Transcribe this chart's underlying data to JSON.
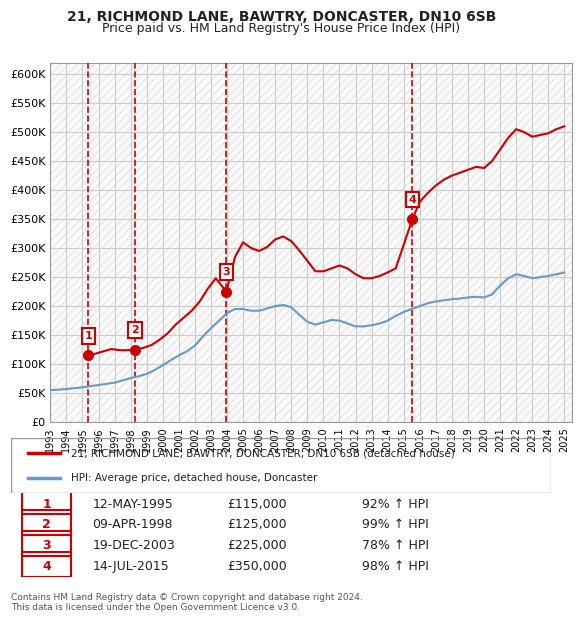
{
  "title1": "21, RICHMOND LANE, BAWTRY, DONCASTER, DN10 6SB",
  "title2": "Price paid vs. HM Land Registry's House Price Index (HPI)",
  "footer": "Contains HM Land Registry data © Crown copyright and database right 2024.\nThis data is licensed under the Open Government Licence v3.0.",
  "legend1": "21, RICHMOND LANE, BAWTRY, DONCASTER, DN10 6SB (detached house)",
  "legend2": "HPI: Average price, detached house, Doncaster",
  "sales": [
    {
      "label": "1",
      "date": "12-MAY-1995",
      "price": 115000,
      "x": 1995.36
    },
    {
      "label": "2",
      "date": "09-APR-1998",
      "price": 125000,
      "x": 1998.27
    },
    {
      "label": "3",
      "date": "19-DEC-2003",
      "price": 225000,
      "x": 2003.96
    },
    {
      "label": "4",
      "date": "14-JUL-2015",
      "price": 350000,
      "x": 2015.54
    }
  ],
  "sale_table": [
    [
      "1",
      "12-MAY-1995",
      "£115,000",
      "92% ↑ HPI"
    ],
    [
      "2",
      "09-APR-1998",
      "£125,000",
      "99% ↑ HPI"
    ],
    [
      "3",
      "19-DEC-2003",
      "£225,000",
      "78% ↑ HPI"
    ],
    [
      "4",
      "14-JUL-2015",
      "£350,000",
      "98% ↑ HPI"
    ]
  ],
  "red_color": "#cc0000",
  "blue_color": "#6699cc",
  "hpi_x": [
    1993,
    1993.5,
    1994,
    1994.5,
    1995,
    1995.5,
    1996,
    1996.5,
    1997,
    1997.5,
    1998,
    1998.5,
    1999,
    1999.5,
    2000,
    2000.5,
    2001,
    2001.5,
    2002,
    2002.5,
    2003,
    2003.5,
    2004,
    2004.5,
    2005,
    2005.5,
    2006,
    2006.5,
    2007,
    2007.5,
    2008,
    2008.5,
    2009,
    2009.5,
    2010,
    2010.5,
    2011,
    2011.5,
    2012,
    2012.5,
    2013,
    2013.5,
    2014,
    2014.5,
    2015,
    2015.5,
    2016,
    2016.5,
    2017,
    2017.5,
    2018,
    2018.5,
    2019,
    2019.5,
    2020,
    2020.5,
    2021,
    2021.5,
    2022,
    2022.5,
    2023,
    2023.5,
    2024,
    2024.5,
    2025
  ],
  "hpi_y": [
    55000,
    56000,
    57000,
    58500,
    60000,
    62000,
    64000,
    66000,
    68000,
    72000,
    76000,
    79000,
    83000,
    90000,
    98000,
    107000,
    115000,
    122000,
    132000,
    148000,
    162000,
    175000,
    188000,
    195000,
    195000,
    192000,
    192000,
    196000,
    200000,
    202000,
    198000,
    185000,
    173000,
    168000,
    172000,
    176000,
    175000,
    170000,
    165000,
    165000,
    167000,
    170000,
    175000,
    183000,
    190000,
    195000,
    200000,
    205000,
    208000,
    210000,
    212000,
    213000,
    215000,
    216000,
    215000,
    220000,
    235000,
    248000,
    255000,
    252000,
    248000,
    250000,
    252000,
    255000,
    258000
  ],
  "red_x": [
    1993,
    1993.5,
    1994,
    1994.5,
    1995.36,
    1995.8,
    1996.3,
    1996.8,
    1997.3,
    1997.8,
    1998.27,
    1998.8,
    1999.3,
    1999.8,
    2000.3,
    2000.8,
    2001.3,
    2001.8,
    2002.3,
    2002.8,
    2003.3,
    2003.96,
    2004.5,
    2005,
    2005.5,
    2006,
    2006.5,
    2007,
    2007.5,
    2008,
    2008.5,
    2009,
    2009.5,
    2010,
    2010.5,
    2011,
    2011.5,
    2012,
    2012.5,
    2013,
    2013.5,
    2014,
    2014.5,
    2015.54,
    2016,
    2016.5,
    2017,
    2017.5,
    2018,
    2018.5,
    2019,
    2019.5,
    2020,
    2020.5,
    2021,
    2021.5,
    2022,
    2022.5,
    2023,
    2023.5,
    2024,
    2024.5,
    2025
  ],
  "red_y": [
    null,
    null,
    null,
    null,
    115000,
    118000,
    122000,
    126000,
    124000,
    124000,
    125000,
    128000,
    133000,
    142000,
    153000,
    168000,
    180000,
    192000,
    208000,
    230000,
    248000,
    225000,
    285000,
    310000,
    300000,
    295000,
    302000,
    315000,
    320000,
    312000,
    296000,
    278000,
    260000,
    260000,
    265000,
    270000,
    265000,
    255000,
    248000,
    248000,
    252000,
    258000,
    265000,
    350000,
    380000,
    395000,
    408000,
    418000,
    425000,
    430000,
    435000,
    440000,
    438000,
    450000,
    470000,
    490000,
    505000,
    500000,
    492000,
    495000,
    498000,
    505000,
    510000
  ],
  "vline_x": [
    1995.36,
    1998.27,
    2003.96,
    2015.54
  ],
  "ylim": [
    0,
    620000
  ],
  "xlim": [
    1993,
    2025.5
  ],
  "yticks": [
    0,
    50000,
    100000,
    150000,
    200000,
    250000,
    300000,
    350000,
    400000,
    450000,
    500000,
    550000,
    600000
  ]
}
